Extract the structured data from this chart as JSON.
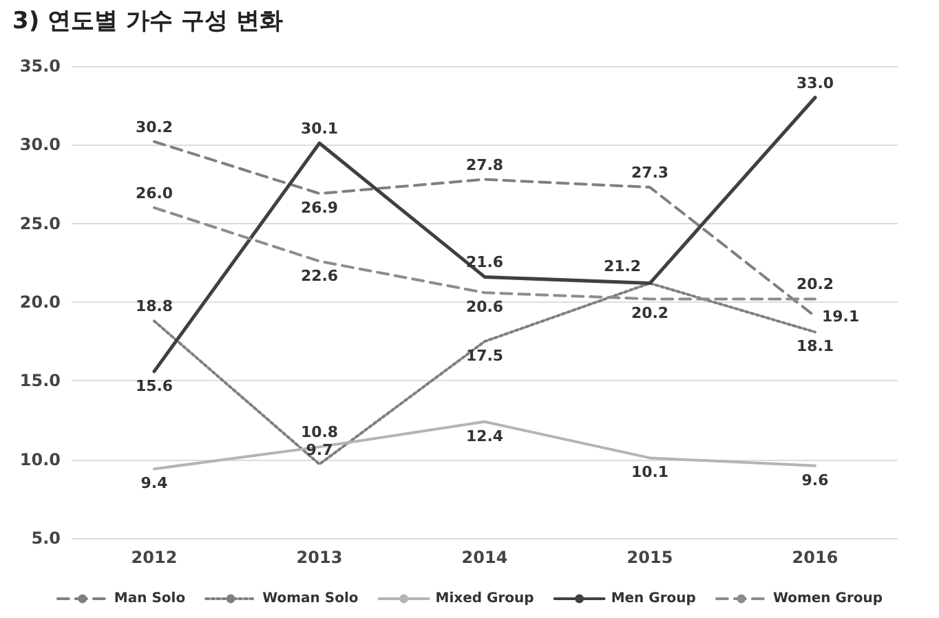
{
  "chart_data": {
    "type": "line",
    "title": "3) 연도별 가수 구성 변화",
    "categories": [
      "2012",
      "2013",
      "2014",
      "2015",
      "2016"
    ],
    "series": [
      {
        "name": "Man Solo",
        "color": "#7f7f7f",
        "line_style": "dashed",
        "values": [
          30.2,
          26.9,
          27.8,
          27.3,
          19.1
        ],
        "value_labels": [
          "30.2",
          "26.9",
          "27.8",
          "27.3",
          "19.1"
        ]
      },
      {
        "name": "Woman Solo",
        "color": "#7f7f7f",
        "line_style": "dotted",
        "values": [
          18.8,
          9.7,
          17.5,
          21.2,
          18.1
        ],
        "value_labels": [
          "18.8",
          "9.7",
          "17.5",
          null,
          "18.1"
        ]
      },
      {
        "name": "Mixed Group",
        "color": "#b4b4b4",
        "line_style": "solid",
        "values": [
          9.4,
          10.8,
          12.4,
          10.1,
          9.6
        ],
        "value_labels": [
          "9.4",
          "10.8",
          "12.4",
          "10.1",
          "9.6"
        ]
      },
      {
        "name": "Men Group",
        "color": "#404040",
        "line_style": "solid",
        "values": [
          15.6,
          30.1,
          21.6,
          21.2,
          33.0
        ],
        "value_labels": [
          "15.6",
          "30.1",
          "21.6",
          "21.2",
          "33.0"
        ]
      },
      {
        "name": "Women Group",
        "color": "#8c8c8c",
        "line_style": "dashed",
        "values": [
          26.0,
          22.6,
          20.6,
          20.2,
          20.2
        ],
        "value_labels": [
          "26.0",
          "22.6",
          "20.6",
          "20.2",
          "20.2"
        ]
      }
    ],
    "ylim": [
      5,
      35
    ],
    "yticks": [
      {
        "value": 5,
        "label": "5.0"
      },
      {
        "value": 10,
        "label": "10.0"
      },
      {
        "value": 15,
        "label": "15.0"
      },
      {
        "value": 20,
        "label": "20.0"
      },
      {
        "value": 25,
        "label": "25.0"
      },
      {
        "value": 30,
        "label": "30.0"
      },
      {
        "value": 35,
        "label": "35.0"
      }
    ],
    "grid": "y",
    "legend": "bottom",
    "marker": "none"
  }
}
